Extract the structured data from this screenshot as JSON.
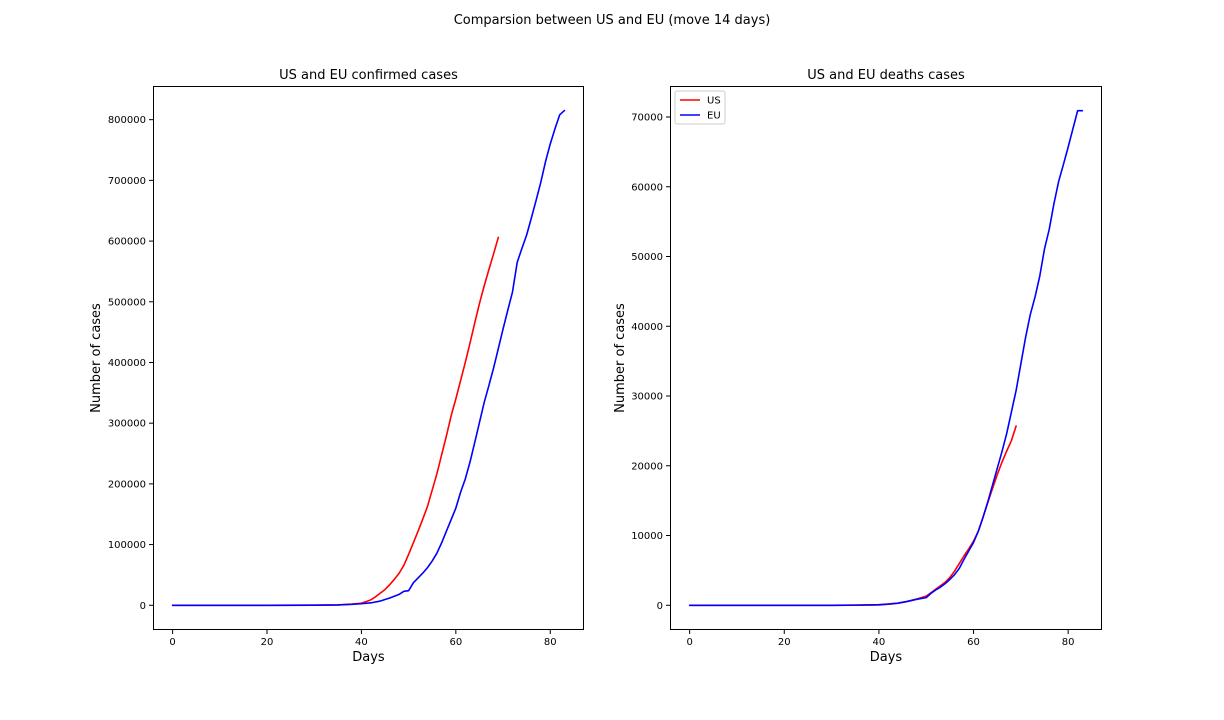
{
  "figure": {
    "suptitle": "Comparsion between US and EU (move 14 days)"
  },
  "chart_data": [
    {
      "type": "line",
      "title": "US and EU confirmed cases",
      "xlabel": "Days",
      "ylabel": "Number of cases",
      "xlim": [
        -4.15,
        87.15
      ],
      "ylim": [
        -40730,
        855480
      ],
      "xticks": [
        0,
        20,
        40,
        60,
        80
      ],
      "yticks": [
        0,
        100000,
        200000,
        300000,
        400000,
        500000,
        600000,
        700000,
        800000
      ],
      "legend": null,
      "series": [
        {
          "name": "US",
          "color": "#ff0000",
          "x": [
            0,
            10,
            20,
            30,
            35,
            38,
            40,
            41,
            42,
            43,
            44,
            45,
            46,
            47,
            48,
            49,
            50,
            51,
            52,
            53,
            54,
            55,
            56,
            57,
            58,
            59,
            60,
            61,
            62,
            63,
            64,
            65,
            66,
            67,
            68,
            69
          ],
          "y": [
            0,
            0,
            0,
            100,
            500,
            2000,
            3500,
            6000,
            9000,
            14000,
            20000,
            26000,
            34000,
            43000,
            53000,
            66000,
            84000,
            103000,
            122000,
            142000,
            163000,
            190000,
            217000,
            248000,
            279000,
            312000,
            340000,
            370000,
            400000,
            432000,
            465000,
            497000,
            526000,
            553000,
            579000,
            606000
          ]
        },
        {
          "name": "EU",
          "color": "#0000ff",
          "x": [
            0,
            10,
            20,
            30,
            35,
            38,
            40,
            42,
            44,
            46,
            48,
            49,
            50,
            51,
            52,
            53,
            54,
            55,
            56,
            57,
            58,
            59,
            60,
            61,
            62,
            63,
            64,
            65,
            66,
            67,
            68,
            69,
            70,
            71,
            72,
            73,
            74,
            75,
            76,
            77,
            78,
            79,
            80,
            81,
            82,
            83
          ],
          "y": [
            0,
            0,
            0,
            100,
            500,
            1500,
            2500,
            4000,
            7000,
            12000,
            18000,
            23000,
            24000,
            37000,
            45000,
            53000,
            62000,
            73000,
            86000,
            103000,
            122000,
            141000,
            160000,
            186000,
            208000,
            236000,
            268000,
            301000,
            334000,
            362000,
            391000,
            423000,
            455000,
            486000,
            516000,
            565000,
            588000,
            610000,
            638000,
            667000,
            697000,
            731000,
            760000,
            785000,
            808000,
            815000
          ]
        }
      ]
    },
    {
      "type": "line",
      "title": "US and EU deaths cases",
      "xlabel": "Days",
      "ylabel": "Number of cases",
      "xlim": [
        -4.15,
        87.15
      ],
      "ylim": [
        -3545,
        74445
      ],
      "xticks": [
        0,
        20,
        40,
        60,
        80
      ],
      "yticks": [
        0,
        10000,
        20000,
        30000,
        40000,
        50000,
        60000,
        70000
      ],
      "legend": "upper left",
      "series": [
        {
          "name": "US",
          "color": "#ff0000",
          "x": [
            0,
            10,
            20,
            30,
            35,
            40,
            42,
            44,
            46,
            48,
            50,
            51,
            52,
            53,
            54,
            55,
            56,
            57,
            58,
            59,
            60,
            61,
            62,
            63,
            64,
            65,
            66,
            67,
            68,
            69
          ],
          "y": [
            0,
            0,
            0,
            0,
            10,
            50,
            150,
            300,
            550,
            900,
            1300,
            1800,
            2300,
            2800,
            3300,
            4000,
            4900,
            6000,
            7100,
            8100,
            9200,
            10600,
            12600,
            14700,
            16700,
            18700,
            20500,
            22100,
            23600,
            25700
          ]
        },
        {
          "name": "EU",
          "color": "#0000ff",
          "x": [
            0,
            10,
            20,
            30,
            35,
            40,
            42,
            44,
            46,
            48,
            50,
            51,
            52,
            53,
            54,
            55,
            56,
            57,
            58,
            59,
            60,
            61,
            62,
            63,
            64,
            65,
            66,
            67,
            68,
            69,
            70,
            71,
            72,
            73,
            74,
            75,
            76,
            77,
            78,
            79,
            80,
            81,
            82,
            83
          ],
          "y": [
            0,
            0,
            0,
            0,
            20,
            80,
            180,
            300,
            550,
            850,
            1100,
            1700,
            2200,
            2600,
            3100,
            3700,
            4400,
            5300,
            6600,
            7800,
            9000,
            10600,
            12600,
            14800,
            17200,
            19600,
            22000,
            24600,
            27700,
            30800,
            34600,
            38400,
            41700,
            44200,
            47200,
            51100,
            53900,
            57600,
            60800,
            63200,
            65700,
            68300,
            70900,
            70900
          ]
        }
      ]
    }
  ]
}
